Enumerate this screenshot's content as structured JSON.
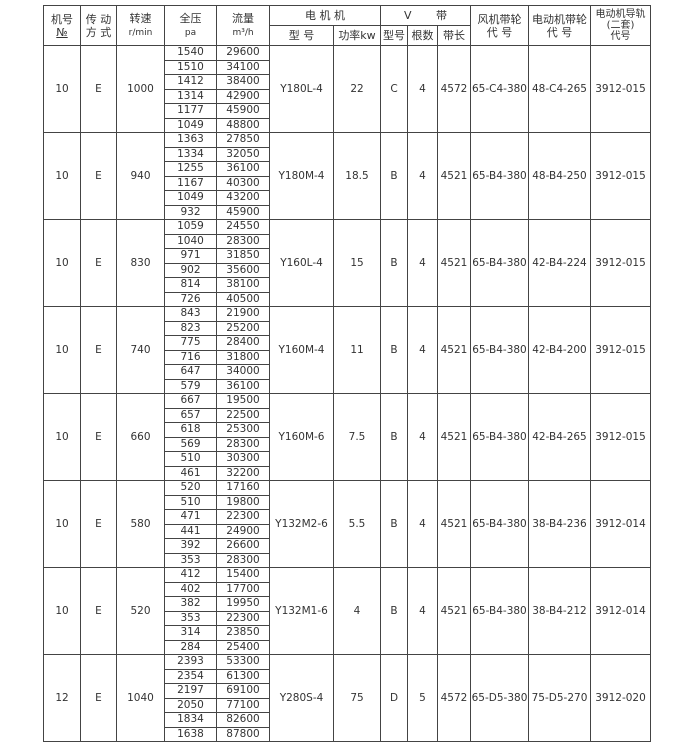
{
  "header": {
    "no": [
      "机号",
      "№"
    ],
    "drive": [
      "传 动",
      "方 式"
    ],
    "speed": [
      "转速",
      "r/min"
    ],
    "pressure": [
      "全压",
      "pa"
    ],
    "flow": [
      "流量",
      "m³/h"
    ],
    "motor": "电 机 机",
    "motor_model": "型 号",
    "motor_power": "功率kw",
    "vbelt": "V       带",
    "belt_type": "型号",
    "belt_count": "根数",
    "belt_length": "带长",
    "fan_pulley": [
      "风机带轮",
      "代  号"
    ],
    "motor_pulley": [
      "电动机带轮",
      "代  号"
    ],
    "rail": [
      "电动机导轨",
      "(二套)",
      "代号"
    ]
  },
  "blocks": [
    {
      "no": "10",
      "drive": "E",
      "speed": "1000",
      "pressure": [
        "1540",
        "1510",
        "1412",
        "1314",
        "1177",
        "1049"
      ],
      "flow": [
        "29600",
        "34100",
        "38400",
        "42900",
        "45900",
        "48800"
      ],
      "model": "Y180L-4",
      "power": "22",
      "belt_type": "C",
      "belt_count": "4",
      "belt_length": "4572",
      "fan_pulley": "65-C4-380",
      "motor_pulley": "48-C4-265",
      "rail": "3912-015"
    },
    {
      "no": "10",
      "drive": "E",
      "speed": "940",
      "pressure": [
        "1363",
        "1334",
        "1255",
        "1167",
        "1049",
        "932"
      ],
      "flow": [
        "27850",
        "32050",
        "36100",
        "40300",
        "43200",
        "45900"
      ],
      "model": "Y180M-4",
      "power": "18.5",
      "belt_type": "B",
      "belt_count": "4",
      "belt_length": "4521",
      "fan_pulley": "65-B4-380",
      "motor_pulley": "48-B4-250",
      "rail": "3912-015"
    },
    {
      "no": "10",
      "drive": "E",
      "speed": "830",
      "pressure": [
        "1059",
        "1040",
        "971",
        "902",
        "814",
        "726"
      ],
      "flow": [
        "24550",
        "28300",
        "31850",
        "35600",
        "38100",
        "40500"
      ],
      "model": "Y160L-4",
      "power": "15",
      "belt_type": "B",
      "belt_count": "4",
      "belt_length": "4521",
      "fan_pulley": "65-B4-380",
      "motor_pulley": "42-B4-224",
      "rail": "3912-015"
    },
    {
      "no": "10",
      "drive": "E",
      "speed": "740",
      "pressure": [
        "843",
        "823",
        "775",
        "716",
        "647",
        "579"
      ],
      "flow": [
        "21900",
        "25200",
        "28400",
        "31800",
        "34000",
        "36100"
      ],
      "model": "Y160M-4",
      "power": "11",
      "belt_type": "B",
      "belt_count": "4",
      "belt_length": "4521",
      "fan_pulley": "65-B4-380",
      "motor_pulley": "42-B4-200",
      "rail": "3912-015"
    },
    {
      "no": "10",
      "drive": "E",
      "speed": "660",
      "pressure": [
        "667",
        "657",
        "618",
        "569",
        "510",
        "461"
      ],
      "flow": [
        "19500",
        "22500",
        "25300",
        "28300",
        "30300",
        "32200"
      ],
      "model": "Y160M-6",
      "power": "7.5",
      "belt_type": "B",
      "belt_count": "4",
      "belt_length": "4521",
      "fan_pulley": "65-B4-380",
      "motor_pulley": "42-B4-265",
      "rail": "3912-015"
    },
    {
      "no": "10",
      "drive": "E",
      "speed": "580",
      "pressure": [
        "520",
        "510",
        "471",
        "441",
        "392",
        "353"
      ],
      "flow": [
        "17160",
        "19800",
        "22300",
        "24900",
        "26600",
        "28300"
      ],
      "model": "Y132M2-6",
      "power": "5.5",
      "belt_type": "B",
      "belt_count": "4",
      "belt_length": "4521",
      "fan_pulley": "65-B4-380",
      "motor_pulley": "38-B4-236",
      "rail": "3912-014"
    },
    {
      "no": "10",
      "drive": "E",
      "speed": "520",
      "pressure": [
        "412",
        "402",
        "382",
        "353",
        "314",
        "284"
      ],
      "flow": [
        "15400",
        "17700",
        "19950",
        "22300",
        "23850",
        "25400"
      ],
      "model": "Y132M1-6",
      "power": "4",
      "belt_type": "B",
      "belt_count": "4",
      "belt_length": "4521",
      "fan_pulley": "65-B4-380",
      "motor_pulley": "38-B4-212",
      "rail": "3912-014"
    },
    {
      "no": "12",
      "drive": "E",
      "speed": "1040",
      "pressure": [
        "2393",
        "2354",
        "2197",
        "2050",
        "1834",
        "1638"
      ],
      "flow": [
        "53300",
        "61300",
        "69100",
        "77100",
        "82600",
        "87800"
      ],
      "model": "Y280S-4",
      "power": "75",
      "belt_type": "D",
      "belt_count": "5",
      "belt_length": "4572",
      "fan_pulley": "65-D5-380",
      "motor_pulley": "75-D5-270",
      "rail": "3912-020"
    }
  ]
}
